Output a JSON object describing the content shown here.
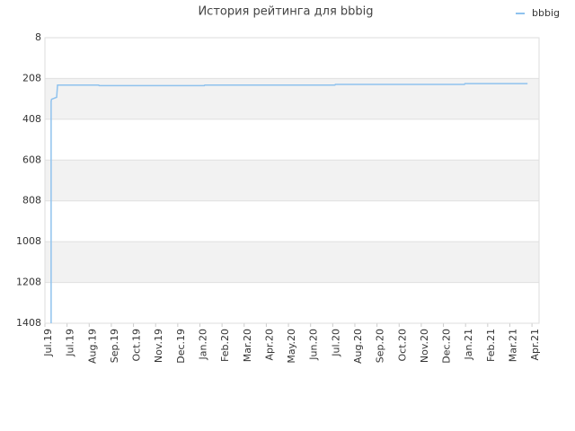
{
  "chart_data": {
    "type": "line",
    "title": "История рейтинга для bbbig",
    "x": [
      0.28,
      0.28,
      0.3,
      0.53,
      0.57,
      2.43,
      2.45,
      7.2,
      7.22,
      13.1,
      13.12,
      18.95,
      18.97,
      21.8
    ],
    "series": [
      {
        "name": "bbbig",
        "color": "#8fc2ee",
        "values": [
          1408,
          320,
          310,
          300,
          240,
          240,
          243,
          243,
          240,
          240,
          237,
          237,
          233,
          233
        ]
      }
    ],
    "xlim": [
      0,
      22.32
    ],
    "xticks": [
      {
        "value": 0,
        "label": "Jul.19"
      },
      {
        "value": 1,
        "label": "Jul.19"
      },
      {
        "value": 2,
        "label": "Aug.19"
      },
      {
        "value": 3,
        "label": "Sep.19"
      },
      {
        "value": 4,
        "label": "Oct.19"
      },
      {
        "value": 5,
        "label": "Nov.19"
      },
      {
        "value": 6,
        "label": "Dec.19"
      },
      {
        "value": 7,
        "label": "Jan.20"
      },
      {
        "value": 8,
        "label": "Feb.20"
      },
      {
        "value": 9,
        "label": "Mar.20"
      },
      {
        "value": 10,
        "label": "Apr.20"
      },
      {
        "value": 11,
        "label": "May.20"
      },
      {
        "value": 12,
        "label": "Jun.20"
      },
      {
        "value": 13,
        "label": "Jul.20"
      },
      {
        "value": 14,
        "label": "Aug.20"
      },
      {
        "value": 15,
        "label": "Sep.20"
      },
      {
        "value": 16,
        "label": "Oct.20"
      },
      {
        "value": 17,
        "label": "Nov.20"
      },
      {
        "value": 18,
        "label": "Dec.20"
      },
      {
        "value": 19,
        "label": "Jan.21"
      },
      {
        "value": 20,
        "label": "Feb.21"
      },
      {
        "value": 21,
        "label": "Mar.21"
      },
      {
        "value": 22,
        "label": "Apr.21"
      }
    ],
    "ylim": [
      8,
      1408
    ],
    "y_inverted": true,
    "yticks": [
      8,
      208,
      408,
      608,
      808,
      1008,
      1208,
      1408
    ],
    "grid": true,
    "legend": "top-right"
  }
}
